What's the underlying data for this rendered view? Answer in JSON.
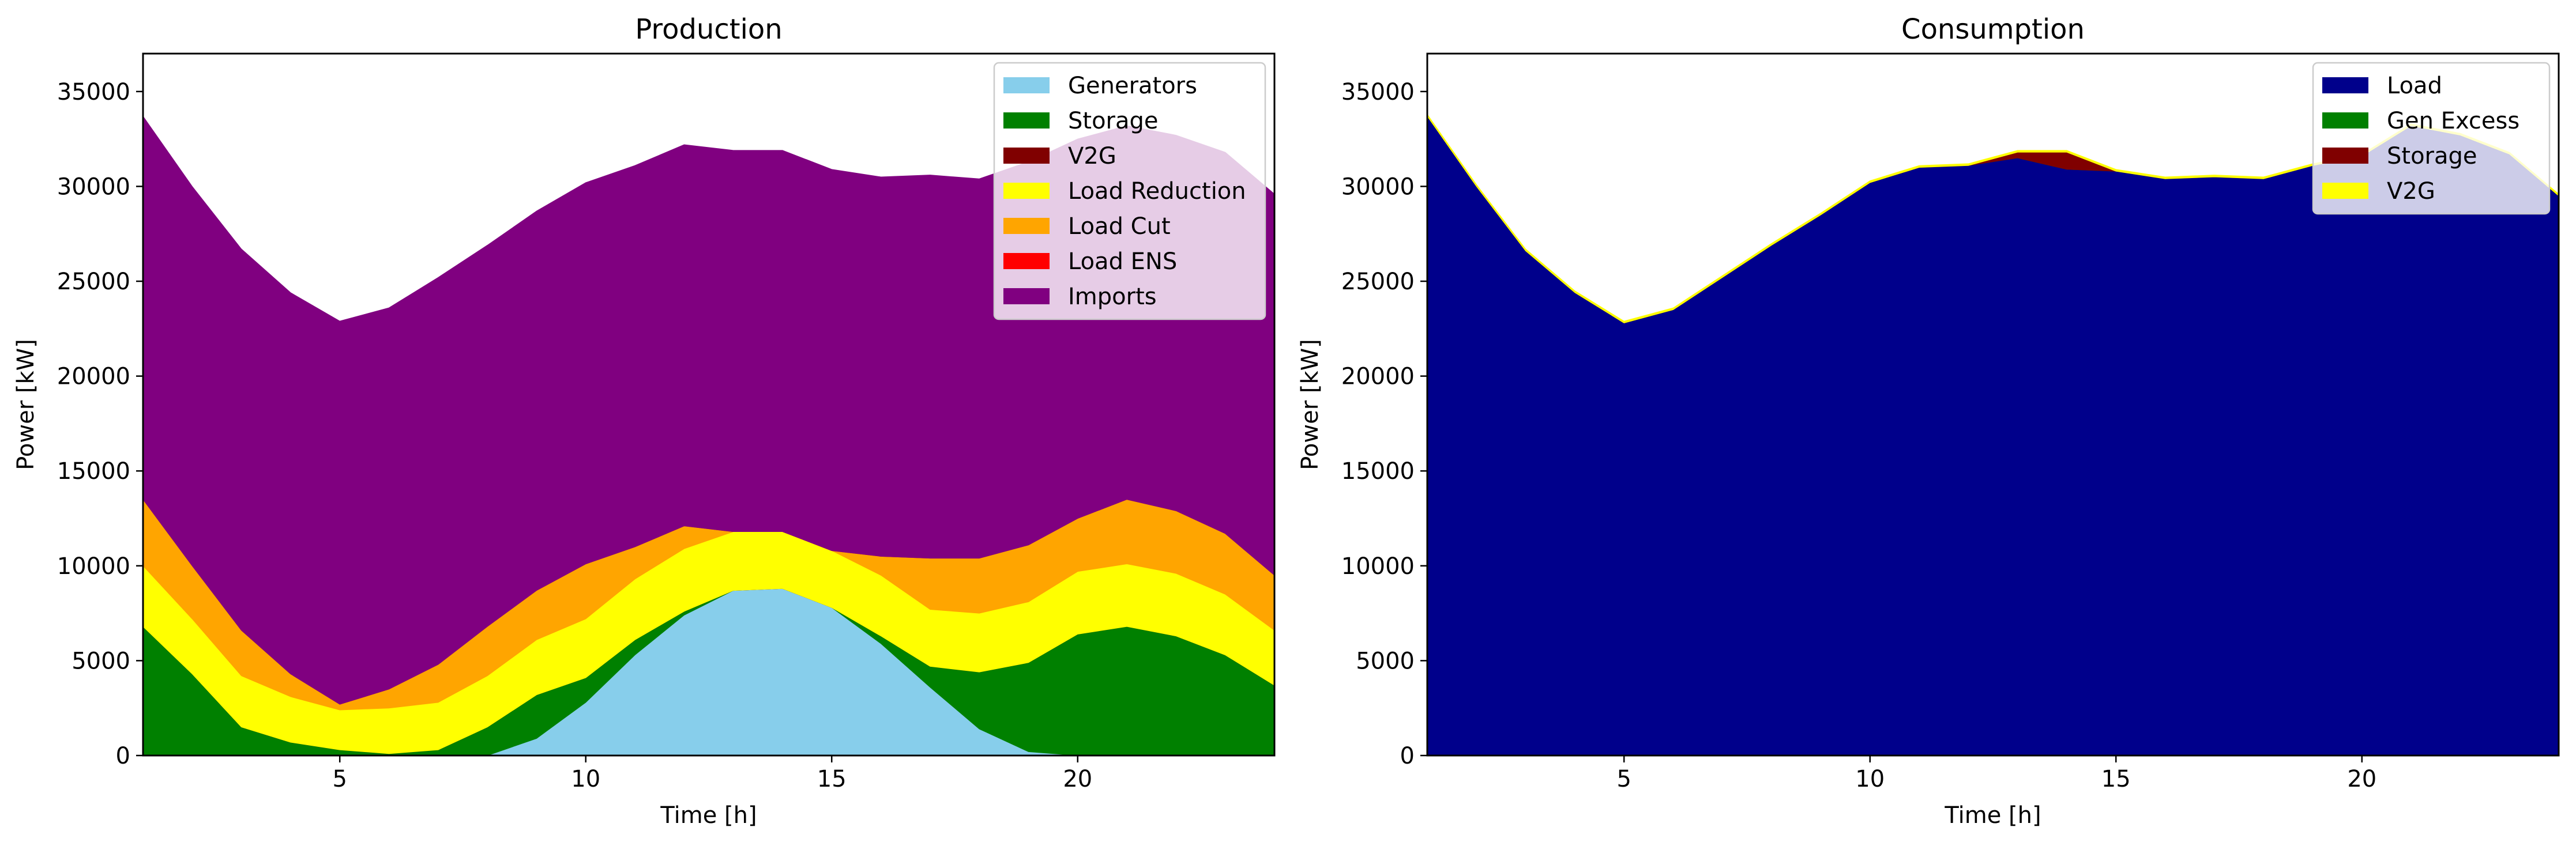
{
  "chart_data": [
    {
      "type": "area",
      "stacked": true,
      "title": "Production",
      "xlabel": "Time [h]",
      "ylabel": "Power [kW]",
      "xlim": [
        1,
        24
      ],
      "ylim": [
        0,
        37000
      ],
      "xticks": [
        5,
        10,
        15,
        20
      ],
      "yticks": [
        0,
        5000,
        10000,
        15000,
        20000,
        25000,
        30000,
        35000
      ],
      "legend_position": "top-right",
      "x": [
        1,
        2,
        3,
        4,
        5,
        6,
        7,
        8,
        9,
        10,
        11,
        12,
        13,
        14,
        15,
        16,
        17,
        18,
        19,
        20,
        21,
        22,
        23,
        24
      ],
      "series": [
        {
          "name": "Generators",
          "color": "#87ceeb",
          "values": [
            0,
            0,
            0,
            0,
            0,
            0,
            0,
            0,
            900,
            2800,
            5300,
            7400,
            8700,
            8800,
            7800,
            5900,
            3600,
            1400,
            200,
            0,
            0,
            0,
            0,
            0
          ]
        },
        {
          "name": "Storage",
          "color": "#008000",
          "values": [
            6800,
            4300,
            1500,
            700,
            300,
            100,
            300,
            1500,
            2300,
            1300,
            800,
            200,
            0,
            0,
            0,
            400,
            1100,
            3000,
            4700,
            6400,
            6800,
            6300,
            5300,
            3700
          ]
        },
        {
          "name": "V2G",
          "color": "#800000",
          "values": [
            0,
            0,
            0,
            0,
            0,
            0,
            0,
            0,
            0,
            0,
            0,
            0,
            0,
            0,
            0,
            0,
            0,
            0,
            0,
            0,
            0,
            0,
            0,
            0
          ]
        },
        {
          "name": "Load Reduction",
          "color": "#ffff00",
          "values": [
            3200,
            2900,
            2700,
            2400,
            2100,
            2400,
            2500,
            2700,
            2900,
            3100,
            3200,
            3300,
            3100,
            3000,
            3000,
            3200,
            3000,
            3100,
            3200,
            3300,
            3300,
            3300,
            3200,
            2900
          ]
        },
        {
          "name": "Load Cut",
          "color": "#ffa500",
          "values": [
            3500,
            2800,
            2400,
            1200,
            300,
            1000,
            2000,
            2600,
            2600,
            2900,
            1700,
            1200,
            0,
            0,
            0,
            1000,
            2700,
            2900,
            3000,
            2800,
            3400,
            3300,
            3200,
            2900
          ]
        },
        {
          "name": "Load ENS",
          "color": "#ff0000",
          "values": [
            0,
            0,
            0,
            0,
            0,
            0,
            0,
            0,
            0,
            0,
            0,
            0,
            0,
            0,
            0,
            0,
            0,
            0,
            0,
            0,
            0,
            0,
            0,
            0
          ]
        },
        {
          "name": "Imports",
          "color": "#800080",
          "values": [
            20200,
            20000,
            20100,
            20100,
            20200,
            20100,
            20400,
            20100,
            20000,
            20100,
            20100,
            20100,
            20100,
            20100,
            20100,
            20000,
            20200,
            20000,
            20200,
            20000,
            19700,
            19800,
            20100,
            20100
          ]
        }
      ]
    },
    {
      "type": "area",
      "stacked": true,
      "title": "Consumption",
      "xlabel": "Time [h]",
      "ylabel": "Power [kW]",
      "xlim": [
        1,
        24
      ],
      "ylim": [
        0,
        37000
      ],
      "xticks": [
        5,
        10,
        15,
        20
      ],
      "yticks": [
        0,
        5000,
        10000,
        15000,
        20000,
        25000,
        30000,
        35000
      ],
      "legend_position": "top-right",
      "x": [
        1,
        2,
        3,
        4,
        5,
        6,
        7,
        8,
        9,
        10,
        11,
        12,
        13,
        14,
        15,
        16,
        17,
        18,
        19,
        20,
        21,
        22,
        23,
        24
      ],
      "series": [
        {
          "name": "Load",
          "color": "#00008b",
          "values": [
            33700,
            30000,
            26600,
            24400,
            22800,
            23500,
            25200,
            26900,
            28500,
            30200,
            31000,
            31100,
            31500,
            30900,
            30800,
            30400,
            30500,
            30400,
            31100,
            31600,
            33200,
            32700,
            31700,
            29500
          ]
        },
        {
          "name": "Gen Excess",
          "color": "#008000",
          "values": [
            0,
            0,
            0,
            0,
            0,
            0,
            0,
            0,
            0,
            0,
            0,
            0,
            0,
            0,
            0,
            0,
            0,
            0,
            0,
            0,
            0,
            0,
            0,
            0
          ]
        },
        {
          "name": "Storage",
          "color": "#800000",
          "values": [
            0,
            0,
            0,
            0,
            0,
            0,
            0,
            0,
            0,
            0,
            0,
            0,
            300,
            900,
            0,
            0,
            0,
            0,
            0,
            0,
            0,
            0,
            0,
            0
          ]
        },
        {
          "name": "V2G",
          "color": "#ffff00",
          "values": [
            100,
            100,
            100,
            100,
            100,
            100,
            100,
            100,
            100,
            100,
            100,
            100,
            100,
            100,
            100,
            100,
            100,
            100,
            100,
            100,
            100,
            100,
            100,
            100
          ]
        }
      ]
    }
  ]
}
